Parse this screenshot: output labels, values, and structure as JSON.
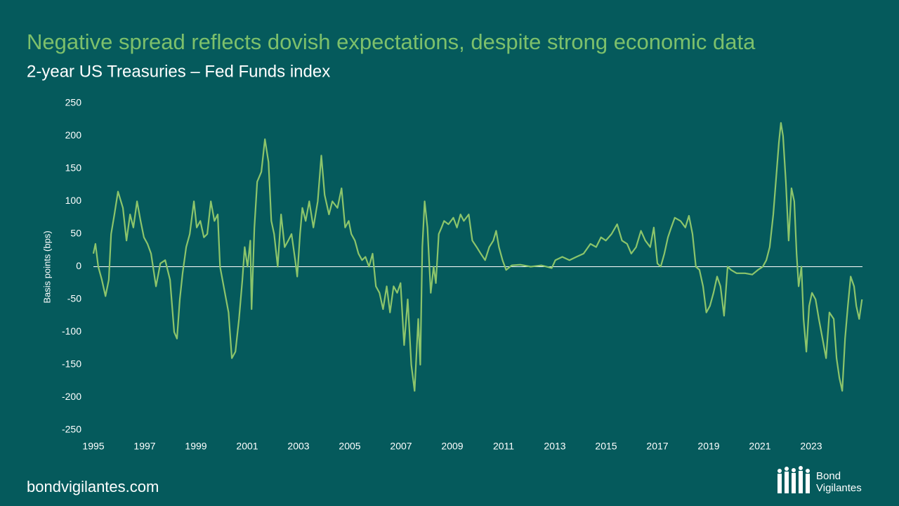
{
  "chart_data": {
    "type": "line",
    "title": "Negative spread reflects dovish expectations, despite strong economic data",
    "subtitle": "2-year US Treasuries – Fed Funds index",
    "y_label": "Basis points (bps)",
    "footer": "bondvigilantes.com",
    "logo": [
      "Bond",
      "Vigilantes"
    ],
    "color": "#8cc56b",
    "xlim": [
      1995,
      2025
    ],
    "xticks": [
      1995,
      1997,
      1999,
      2001,
      2003,
      2005,
      2007,
      2009,
      2011,
      2013,
      2015,
      2017,
      2019,
      2021,
      2023
    ],
    "ylim": [
      -250,
      250
    ],
    "yticks": [
      -250,
      -200,
      -150,
      -100,
      -50,
      0,
      50,
      100,
      150,
      200,
      250
    ],
    "grid": false,
    "x": [
      1995.0,
      1995.08,
      1995.19,
      1995.33,
      1995.47,
      1995.6,
      1995.69,
      1995.82,
      1995.96,
      1996.15,
      1996.29,
      1996.43,
      1996.56,
      1996.7,
      1996.84,
      1996.97,
      1997.11,
      1997.25,
      1997.44,
      1997.61,
      1997.8,
      1997.99,
      1998.15,
      1998.26,
      1998.37,
      1998.48,
      1998.62,
      1998.76,
      1998.92,
      1999.03,
      1999.17,
      1999.31,
      1999.44,
      1999.58,
      1999.72,
      1999.85,
      1999.94,
      2000.13,
      2000.27,
      2000.4,
      2000.54,
      2000.68,
      2000.81,
      2000.9,
      2001.01,
      2001.12,
      2001.17,
      2001.28,
      2001.39,
      2001.55,
      2001.69,
      2001.83,
      2001.94,
      2002.05,
      2002.19,
      2002.32,
      2002.46,
      2002.6,
      2002.73,
      2002.87,
      2002.95,
      2003.06,
      2003.15,
      2003.28,
      2003.42,
      2003.58,
      2003.75,
      2003.89,
      2004.02,
      2004.19,
      2004.32,
      2004.52,
      2004.68,
      2004.82,
      2004.96,
      2005.06,
      2005.2,
      2005.34,
      2005.48,
      2005.61,
      2005.75,
      2005.89,
      2006.02,
      2006.16,
      2006.3,
      2006.44,
      2006.57,
      2006.71,
      2006.85,
      2006.98,
      2007.12,
      2007.26,
      2007.4,
      2007.53,
      2007.67,
      2007.75,
      2007.83,
      2007.92,
      2008.03,
      2008.16,
      2008.27,
      2008.36,
      2008.47,
      2008.58,
      2008.68,
      2008.85,
      2009.04,
      2009.18,
      2009.32,
      2009.45,
      2009.64,
      2009.78,
      2009.95,
      2010.11,
      2010.28,
      2010.44,
      2010.6,
      2010.71,
      2010.82,
      2010.96,
      2011.1,
      2011.32,
      2011.65,
      2012.06,
      2012.47,
      2012.88,
      2013.02,
      2013.29,
      2013.57,
      2013.84,
      2014.12,
      2014.39,
      2014.61,
      2014.8,
      2014.99,
      2015.21,
      2015.43,
      2015.62,
      2015.82,
      2015.98,
      2016.17,
      2016.36,
      2016.53,
      2016.72,
      2016.86,
      2017.0,
      2017.13,
      2017.27,
      2017.41,
      2017.54,
      2017.68,
      2017.9,
      2018.09,
      2018.23,
      2018.37,
      2018.5,
      2018.64,
      2018.78,
      2018.91,
      2019.05,
      2019.19,
      2019.33,
      2019.46,
      2019.6,
      2019.74,
      2019.87,
      2020.09,
      2020.42,
      2020.7,
      2020.92,
      2021.11,
      2021.25,
      2021.38,
      2021.52,
      2021.66,
      2021.74,
      2021.82,
      2021.9,
      2022.01,
      2022.12,
      2022.23,
      2022.34,
      2022.43,
      2022.51,
      2022.62,
      2022.7,
      2022.81,
      2022.92,
      2023.03,
      2023.17,
      2023.3,
      2023.44,
      2023.58,
      2023.71,
      2023.88,
      2023.99,
      2024.1,
      2024.21,
      2024.32,
      2024.43,
      2024.54,
      2024.67,
      2024.76,
      2024.87,
      2024.98
    ],
    "values": [
      20,
      35,
      0,
      -20,
      -45,
      -20,
      50,
      80,
      115,
      90,
      40,
      80,
      60,
      100,
      70,
      45,
      35,
      20,
      -30,
      5,
      10,
      -20,
      -100,
      -110,
      -50,
      -10,
      30,
      50,
      100,
      60,
      70,
      45,
      50,
      100,
      70,
      80,
      0,
      -40,
      -70,
      -140,
      -130,
      -80,
      -20,
      30,
      0,
      40,
      -65,
      60,
      130,
      145,
      195,
      160,
      70,
      50,
      0,
      80,
      30,
      40,
      50,
      10,
      -15,
      50,
      90,
      70,
      100,
      60,
      100,
      170,
      110,
      80,
      100,
      90,
      120,
      60,
      70,
      50,
      40,
      20,
      10,
      15,
      0,
      20,
      -30,
      -40,
      -65,
      -30,
      -70,
      -30,
      -40,
      -25,
      -120,
      -50,
      -150,
      -190,
      -80,
      -150,
      30,
      100,
      60,
      -40,
      0,
      -25,
      50,
      60,
      70,
      65,
      75,
      60,
      80,
      70,
      80,
      40,
      30,
      20,
      10,
      30,
      40,
      55,
      30,
      10,
      -5,
      2,
      3,
      0,
      2,
      -2,
      10,
      15,
      10,
      15,
      20,
      35,
      30,
      45,
      40,
      50,
      65,
      40,
      35,
      20,
      30,
      55,
      40,
      30,
      60,
      5,
      0,
      20,
      45,
      60,
      75,
      70,
      60,
      78,
      50,
      0,
      -5,
      -30,
      -70,
      -60,
      -40,
      -15,
      -30,
      -75,
      0,
      -5,
      -10,
      -10,
      -12,
      -5,
      0,
      10,
      30,
      80,
      150,
      190,
      220,
      200,
      130,
      40,
      120,
      100,
      20,
      -30,
      0,
      -80,
      -130,
      -60,
      -40,
      -50,
      -80,
      -110,
      -140,
      -70,
      -80,
      -140,
      -170,
      -190,
      -110,
      -60,
      -15,
      -30,
      -60,
      -80,
      -50
    ]
  }
}
